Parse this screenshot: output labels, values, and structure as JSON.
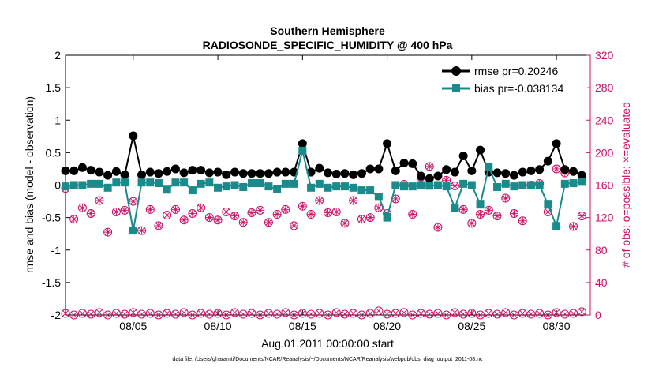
{
  "colors": {
    "rmse": "#000000",
    "bias": "#1a8a8a",
    "obs": "#cc1166",
    "axis": "#000000"
  },
  "chart_data": {
    "type": "line",
    "title": "Southern Hemisphere",
    "subtitle": "RADIOSONDE_SPECIFIC_HUMIDITY @ 400 hPa",
    "xlabel": "Aug.01,2011 00:00:00 start",
    "ylabel": "rmse and bias (model - observation)",
    "y2label": "# of obs: o=possible; ×=evaluated",
    "footnote": "data file: /Users/gharamti/Documents/NCAR/Reanalysis/~/Documents/NCAR/Reanalysis/webpub/obs_diag_output_2011-08.nc",
    "xlim": [
      1,
      32
    ],
    "ylim": [
      -2,
      2
    ],
    "y2lim": [
      0,
      320
    ],
    "x_ticks": [
      5,
      10,
      15,
      20,
      25,
      30
    ],
    "x_tick_labels": [
      "08/05",
      "08/10",
      "08/15",
      "08/20",
      "08/25",
      "08/30"
    ],
    "y_ticks": [
      -2,
      -1.5,
      -1,
      -0.5,
      0,
      0.5,
      1,
      1.5,
      2
    ],
    "y_tick_labels": [
      "-2",
      "-1.5",
      "-1",
      "-0.5",
      "0",
      "0.5",
      "1",
      "1.5",
      "2"
    ],
    "y2_ticks": [
      0,
      40,
      80,
      120,
      160,
      200,
      240,
      280,
      320
    ],
    "y2_tick_labels": [
      "0",
      "40",
      "80",
      "120",
      "160",
      "200",
      "240",
      "280",
      "320"
    ],
    "x": [
      1.0,
      1.5,
      2.0,
      2.5,
      3.0,
      3.5,
      4.0,
      4.5,
      5.0,
      5.5,
      6.0,
      6.5,
      7.0,
      7.5,
      8.0,
      8.5,
      9.0,
      9.5,
      10.0,
      10.5,
      11.0,
      11.5,
      12.0,
      12.5,
      13.0,
      13.5,
      14.0,
      14.5,
      15.0,
      15.5,
      16.0,
      16.5,
      17.0,
      17.5,
      18.0,
      18.5,
      19.0,
      19.5,
      20.0,
      20.5,
      21.0,
      21.5,
      22.0,
      22.5,
      23.0,
      23.5,
      24.0,
      24.5,
      25.0,
      25.5,
      26.0,
      26.5,
      27.0,
      27.5,
      28.0,
      28.5,
      29.0,
      29.5,
      30.0,
      30.5,
      31.0,
      31.5
    ],
    "series": [
      {
        "name": "rmse pr=0.20246",
        "marker": "circle",
        "values": [
          0.22,
          0.22,
          0.27,
          0.23,
          0.2,
          0.15,
          0.21,
          0.16,
          0.76,
          0.16,
          0.2,
          0.18,
          0.21,
          0.25,
          0.19,
          0.23,
          0.23,
          0.19,
          0.2,
          0.16,
          0.2,
          0.18,
          0.18,
          0.18,
          0.18,
          0.2,
          0.2,
          0.2,
          0.64,
          0.2,
          0.26,
          0.19,
          0.17,
          0.18,
          0.16,
          0.18,
          0.25,
          0.25,
          0.64,
          0.22,
          0.34,
          0.33,
          0.14,
          0.1,
          0.14,
          0.24,
          0.2,
          0.45,
          0.22,
          0.54,
          0.2,
          0.19,
          0.18,
          0.15,
          0.2,
          0.22,
          0.24,
          0.37,
          0.64,
          0.24,
          0.21,
          0.15
        ]
      },
      {
        "name": "bias pr=-0.038134",
        "marker": "square",
        "values": [
          -0.02,
          0.0,
          0.0,
          0.02,
          0.02,
          -0.04,
          0.04,
          0.04,
          -0.7,
          0.04,
          0.04,
          0.03,
          -0.07,
          0.04,
          0.04,
          -0.08,
          0.02,
          0.04,
          -0.04,
          -0.02,
          0.0,
          -0.03,
          0.03,
          0.03,
          -0.02,
          -0.06,
          0.02,
          0.02,
          0.53,
          -0.04,
          0.02,
          -0.04,
          -0.02,
          -0.02,
          -0.04,
          -0.08,
          -0.08,
          -0.18,
          -0.5,
          0.0,
          -0.02,
          -0.02,
          0.0,
          -0.01,
          0.0,
          -0.02,
          -0.35,
          0.02,
          0.0,
          -0.3,
          0.28,
          -0.03,
          0.02,
          -0.02,
          0.0,
          0.0,
          0.0,
          -0.3,
          -0.63,
          0.02,
          0.03,
          0.05
        ]
      }
    ],
    "obs_possible": [
      156,
      118,
      132,
      125,
      141,
      102,
      127,
      129,
      140,
      104,
      130,
      110,
      123,
      130,
      117,
      125,
      132,
      120,
      117,
      127,
      122,
      114,
      126,
      129,
      114,
      124,
      130,
      110,
      134,
      124,
      141,
      126,
      127,
      113,
      141,
      118,
      120,
      132,
      125,
      143,
      161,
      124,
      170,
      183,
      108,
      166,
      159,
      130,
      113,
      124,
      129,
      122,
      144,
      125,
      116,
      160,
      162,
      127,
      180,
      175,
      109,
      122
    ],
    "obs_evaluated": [
      156,
      118,
      132,
      125,
      141,
      102,
      127,
      129,
      140,
      104,
      130,
      110,
      123,
      130,
      117,
      125,
      132,
      120,
      117,
      127,
      122,
      114,
      126,
      129,
      114,
      124,
      130,
      110,
      134,
      124,
      141,
      126,
      127,
      113,
      141,
      118,
      120,
      132,
      125,
      143,
      161,
      124,
      170,
      183,
      108,
      166,
      159,
      130,
      113,
      124,
      129,
      122,
      144,
      125,
      116,
      160,
      162,
      127,
      180,
      175,
      109,
      122
    ],
    "obs_possible_low": [
      2,
      0,
      2,
      1,
      3,
      0,
      2,
      1,
      3,
      1,
      2,
      0,
      2,
      1,
      3,
      0,
      2,
      1,
      2,
      0,
      3,
      1,
      2,
      0,
      2,
      1,
      3,
      0,
      2,
      1,
      2,
      0,
      3,
      1,
      2,
      0,
      2,
      5,
      1,
      2,
      3,
      0,
      2,
      1,
      2,
      0,
      3,
      1,
      2,
      0,
      2,
      1,
      3,
      0,
      2,
      1,
      2,
      0,
      3,
      1,
      2,
      4
    ]
  },
  "legend": {
    "entries": [
      "rmse pr=0.20246",
      "bias pr=-0.038134"
    ]
  }
}
